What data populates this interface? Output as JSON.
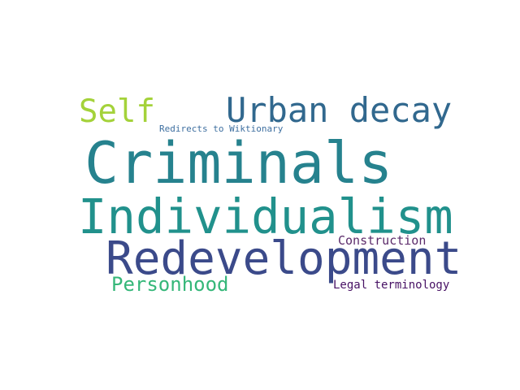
{
  "words": {
    "self": {
      "text": "Self",
      "color": "#a4d23a"
    },
    "urban_decay": {
      "text": "Urban decay",
      "color": "#31688e"
    },
    "redirects": {
      "text": "Redirects to Wiktionary",
      "color": "#3e6fa0"
    },
    "criminals": {
      "text": "Criminals",
      "color": "#26828e"
    },
    "individualism": {
      "text": "Individualism",
      "color": "#21918c"
    },
    "construction": {
      "text": "Construction",
      "color": "#5b2a6a"
    },
    "redevelopment": {
      "text": "Redevelopment",
      "color": "#3b4a8a"
    },
    "personhood": {
      "text": "Personhood",
      "color": "#35b779"
    },
    "legal_terminology": {
      "text": "Legal terminology",
      "color": "#471164"
    }
  }
}
